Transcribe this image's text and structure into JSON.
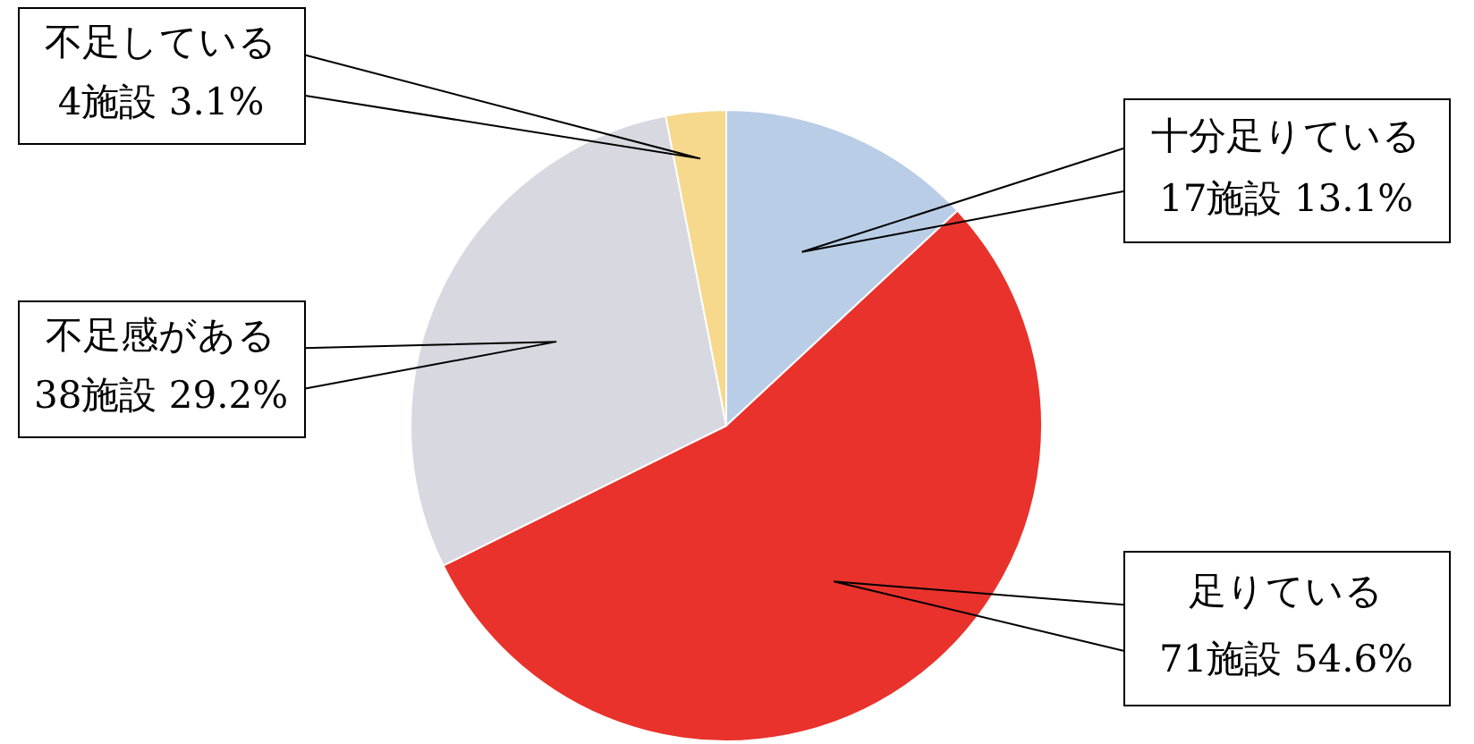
{
  "chart_data": {
    "type": "pie",
    "categories": [
      "十分足りている",
      "足りている",
      "不足感がある",
      "不足している"
    ],
    "values": [
      17,
      71,
      38,
      4
    ],
    "colors": [
      "#b9cde6",
      "#e8322b",
      "#d8d8e0",
      "#f6d98c"
    ],
    "value_labels": [
      "17施設 13.1%",
      "71施設 54.6%",
      "38施設 29.2%",
      "4施設 3.1%"
    ],
    "legend": false
  }
}
